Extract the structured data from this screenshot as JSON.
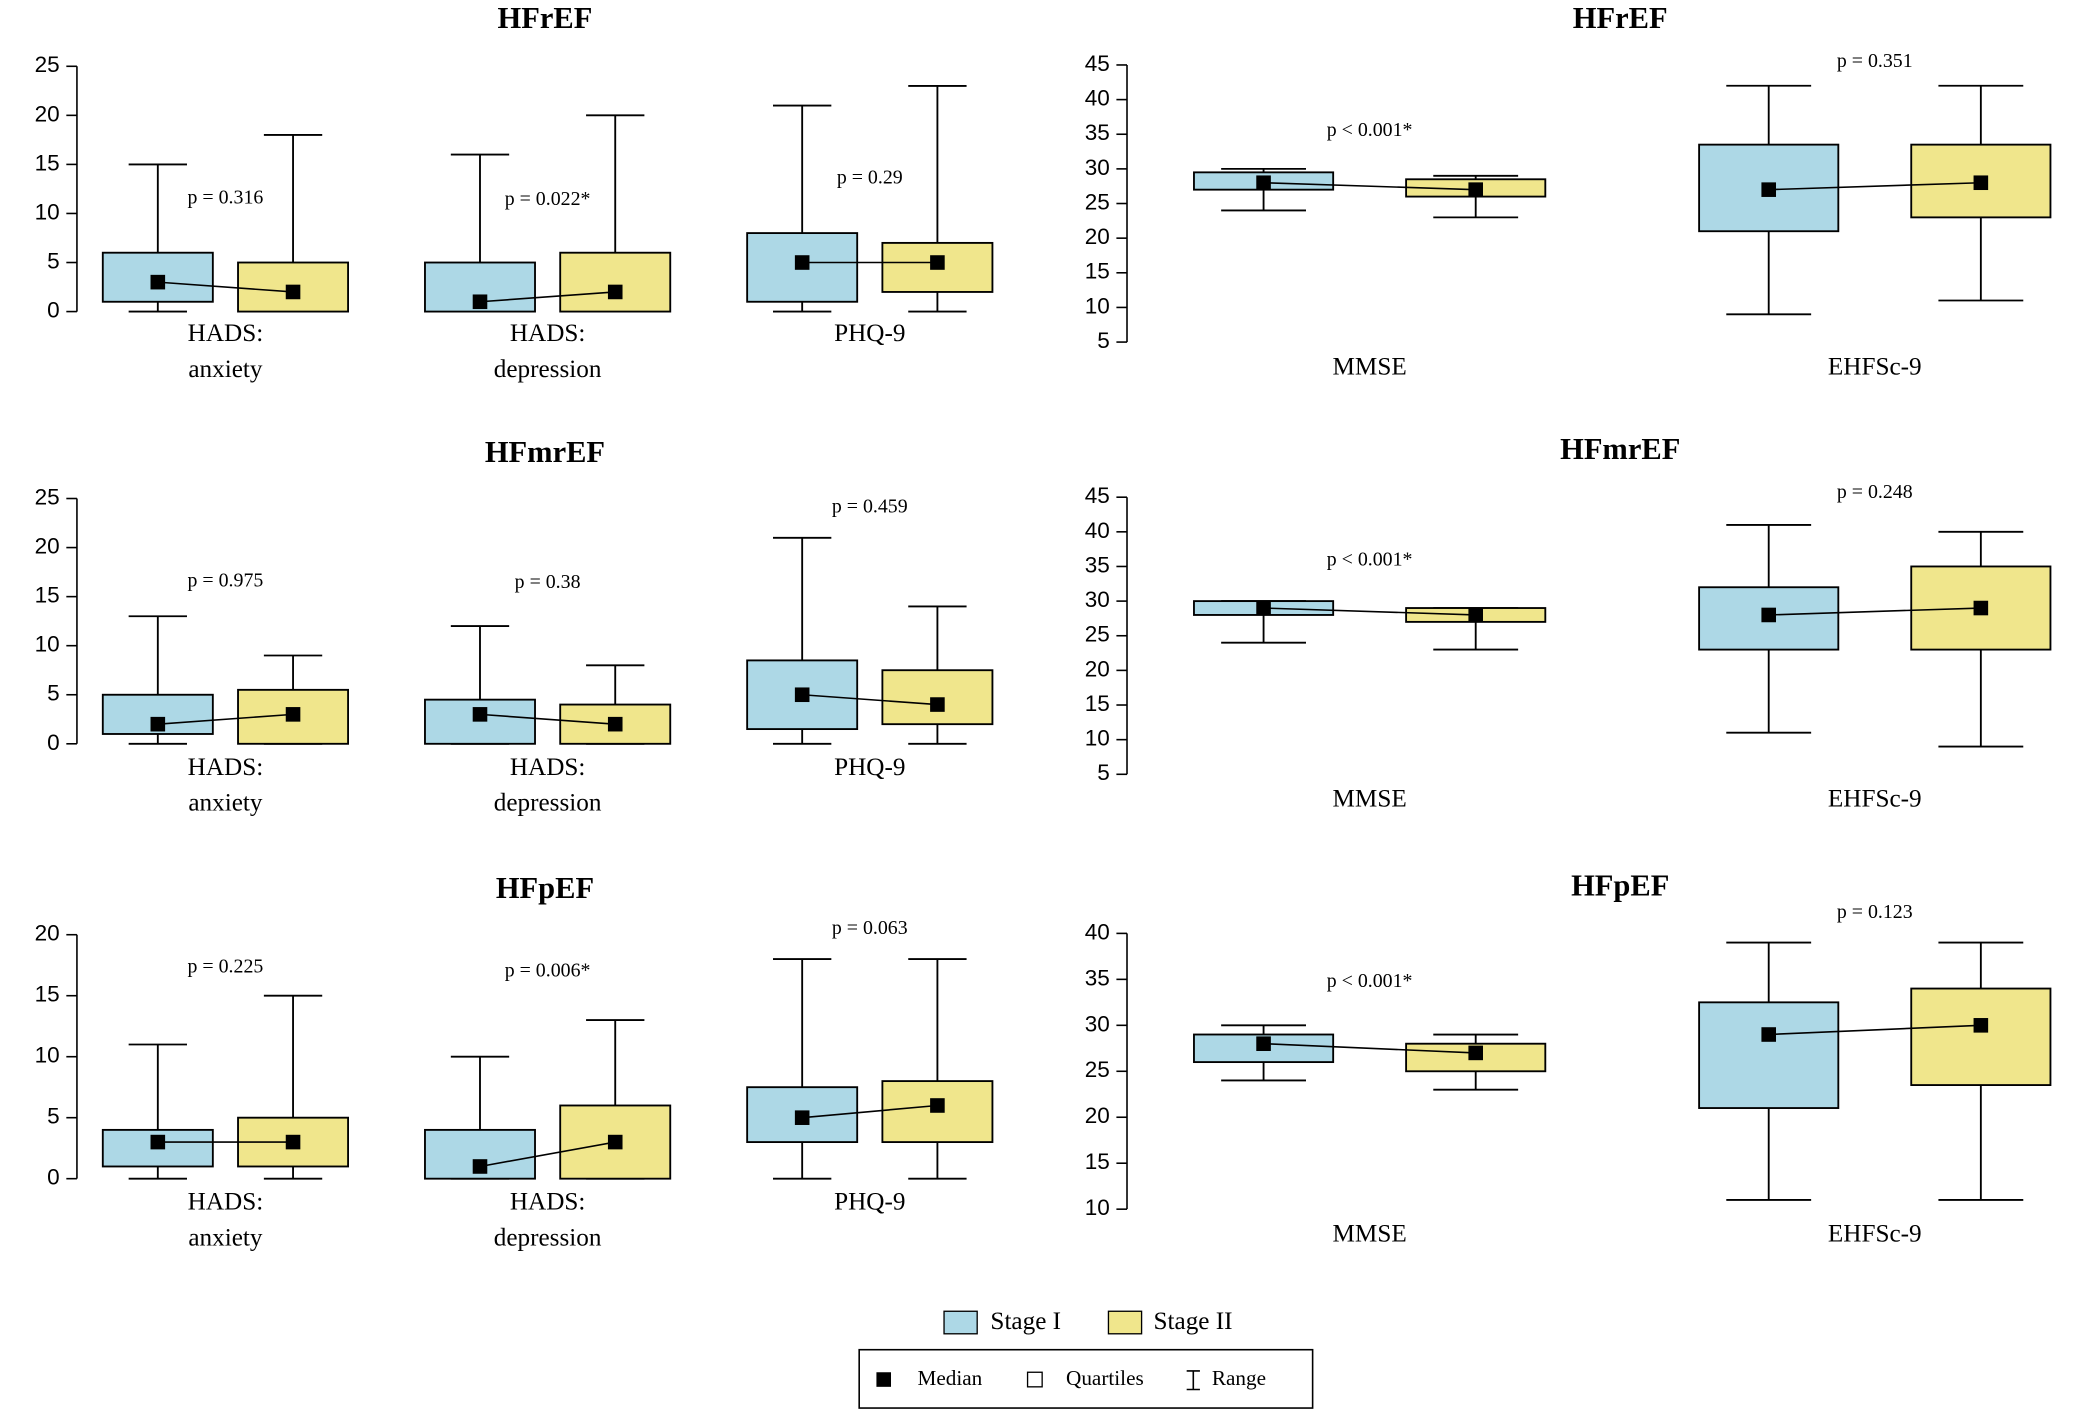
{
  "chart_data": [
    {
      "type": "box",
      "title": "HFrEF",
      "categories": [
        [
          "HADS:",
          "anxiety"
        ],
        [
          "HADS:",
          "depression"
        ],
        [
          "PHQ-9"
        ]
      ],
      "ylim": [
        0,
        25
      ],
      "yticks": [
        0,
        5,
        10,
        15,
        20,
        25
      ],
      "grid": false,
      "annotations": [
        "p = 0.316",
        "p = 0.022*",
        "p = 0.29"
      ],
      "series": [
        {
          "name": "Stage I",
          "color": "#add8e6",
          "min": [
            0,
            0,
            0
          ],
          "q1": [
            1,
            0,
            1
          ],
          "median": [
            3,
            1,
            5
          ],
          "q3": [
            6,
            5,
            8
          ],
          "max": [
            15,
            16,
            21
          ]
        },
        {
          "name": "Stage II",
          "color": "#f0e68c",
          "min": [
            0,
            0,
            0
          ],
          "q1": [
            0,
            0,
            2
          ],
          "median": [
            2,
            2,
            5
          ],
          "q3": [
            5,
            6,
            7
          ],
          "max": [
            18,
            20,
            23
          ]
        }
      ]
    },
    {
      "type": "box",
      "title": "HFrEF",
      "categories": [
        [
          "MMSE"
        ],
        [
          "EHFSc-9"
        ]
      ],
      "ylim": [
        5,
        45
      ],
      "yticks": [
        5,
        10,
        15,
        20,
        25,
        30,
        35,
        40,
        45
      ],
      "grid": false,
      "annotations": [
        "p < 0.001*",
        "p = 0.351"
      ],
      "series": [
        {
          "name": "Stage I",
          "color": "#add8e6",
          "min": [
            24,
            9
          ],
          "q1": [
            27,
            21
          ],
          "median": [
            28,
            27
          ],
          "q3": [
            29.5,
            33.5
          ],
          "max": [
            30,
            42
          ]
        },
        {
          "name": "Stage II",
          "color": "#f0e68c",
          "min": [
            23,
            11
          ],
          "q1": [
            26,
            23
          ],
          "median": [
            27,
            28
          ],
          "q3": [
            28.5,
            33.5
          ],
          "max": [
            29,
            42
          ]
        }
      ]
    },
    {
      "type": "box",
      "title": "HFmrEF",
      "categories": [
        [
          "HADS:",
          "anxiety"
        ],
        [
          "HADS:",
          "depression"
        ],
        [
          "PHQ-9"
        ]
      ],
      "ylim": [
        0,
        25
      ],
      "yticks": [
        0,
        5,
        10,
        15,
        20,
        25
      ],
      "grid": false,
      "annotations": [
        "p = 0.975",
        "p = 0.38",
        "p = 0.459"
      ],
      "series": [
        {
          "name": "Stage I",
          "color": "#add8e6",
          "min": [
            0,
            0,
            0
          ],
          "q1": [
            1,
            0,
            1.5
          ],
          "median": [
            2,
            3,
            5
          ],
          "q3": [
            5,
            4.5,
            8.5
          ],
          "max": [
            13,
            12,
            21
          ]
        },
        {
          "name": "Stage II",
          "color": "#f0e68c",
          "min": [
            0,
            0,
            0
          ],
          "q1": [
            0,
            0,
            2
          ],
          "median": [
            3,
            2,
            4
          ],
          "q3": [
            5.5,
            4,
            7.5
          ],
          "max": [
            9,
            8,
            14
          ]
        }
      ]
    },
    {
      "type": "box",
      "title": "HFmrEF",
      "categories": [
        [
          "MMSE"
        ],
        [
          "EHFSc-9"
        ]
      ],
      "ylim": [
        5,
        45
      ],
      "yticks": [
        5,
        10,
        15,
        20,
        25,
        30,
        35,
        40,
        45
      ],
      "grid": false,
      "annotations": [
        "p < 0.001*",
        "p = 0.248"
      ],
      "series": [
        {
          "name": "Stage I",
          "color": "#add8e6",
          "min": [
            24,
            11
          ],
          "q1": [
            28,
            23
          ],
          "median": [
            29,
            28
          ],
          "q3": [
            30,
            32
          ],
          "max": [
            30,
            41
          ]
        },
        {
          "name": "Stage II",
          "color": "#f0e68c",
          "min": [
            23,
            9
          ],
          "q1": [
            27,
            23
          ],
          "median": [
            28,
            29
          ],
          "q3": [
            29,
            35
          ],
          "max": [
            29,
            40
          ]
        }
      ]
    },
    {
      "type": "box",
      "title": "HFpEF",
      "categories": [
        [
          "HADS:",
          "anxiety"
        ],
        [
          "HADS:",
          "depression"
        ],
        [
          "PHQ-9"
        ]
      ],
      "ylim": [
        0,
        20
      ],
      "yticks": [
        0,
        5,
        10,
        15,
        20
      ],
      "grid": false,
      "annotations": [
        "p = 0.225",
        "p = 0.006*",
        "p = 0.063"
      ],
      "series": [
        {
          "name": "Stage I",
          "color": "#add8e6",
          "min": [
            0,
            0,
            0
          ],
          "q1": [
            1,
            0,
            3
          ],
          "median": [
            3,
            1,
            5
          ],
          "q3": [
            4,
            4,
            7.5
          ],
          "max": [
            11,
            10,
            18
          ]
        },
        {
          "name": "Stage II",
          "color": "#f0e68c",
          "min": [
            0,
            0,
            0
          ],
          "q1": [
            1,
            0,
            3
          ],
          "median": [
            3,
            3,
            6
          ],
          "q3": [
            5,
            6,
            8
          ],
          "max": [
            15,
            13,
            18
          ]
        }
      ]
    },
    {
      "type": "box",
      "title": "HFpEF",
      "categories": [
        [
          "MMSE"
        ],
        [
          "EHFSc-9"
        ]
      ],
      "ylim": [
        10,
        40
      ],
      "yticks": [
        10,
        15,
        20,
        25,
        30,
        35,
        40
      ],
      "grid": false,
      "annotations": [
        "p < 0.001*",
        "p = 0.123"
      ],
      "series": [
        {
          "name": "Stage I",
          "color": "#add8e6",
          "min": [
            24,
            11
          ],
          "q1": [
            26,
            21
          ],
          "median": [
            28,
            29
          ],
          "q3": [
            29,
            32.5
          ],
          "max": [
            30,
            39
          ]
        },
        {
          "name": "Stage II",
          "color": "#f0e68c",
          "min": [
            23,
            11
          ],
          "q1": [
            25,
            23.5
          ],
          "median": [
            27,
            30
          ],
          "q3": [
            28,
            34
          ],
          "max": [
            29,
            39
          ]
        }
      ]
    }
  ],
  "legend": {
    "items": [
      "Median",
      "Quartiles",
      "Range"
    ]
  }
}
